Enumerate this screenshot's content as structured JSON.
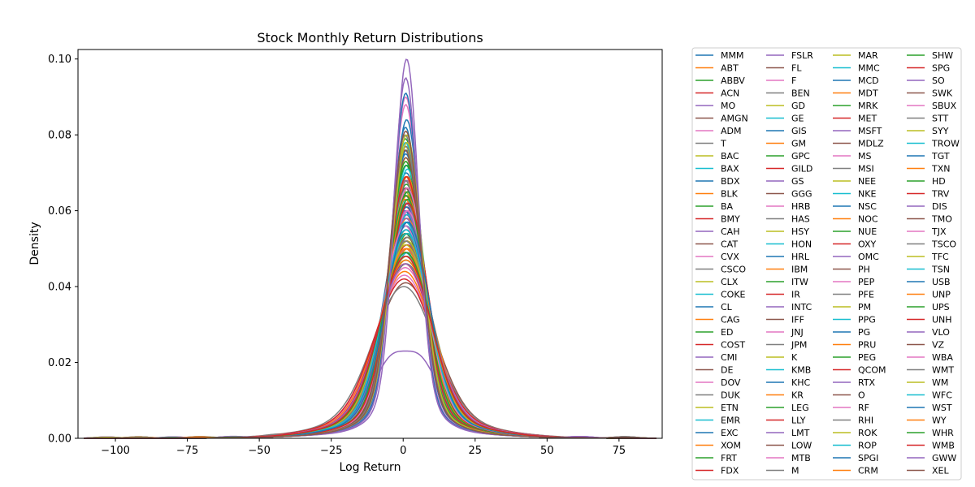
{
  "chart_data": {
    "type": "line",
    "title": "Stock Monthly Return Distributions",
    "xlabel": "Log Return",
    "ylabel": "Density",
    "xlim": [
      -113,
      90
    ],
    "ylim": [
      0,
      0.1025
    ],
    "xticks": [
      -100,
      -75,
      -50,
      -25,
      0,
      25,
      50,
      75
    ],
    "xtick_labels": [
      "−100",
      "−75",
      "−50",
      "−25",
      "0",
      "25",
      "50",
      "75"
    ],
    "yticks": [
      0,
      0.02,
      0.04,
      0.06,
      0.08,
      0.1
    ],
    "ytick_labels": [
      "0.00",
      "0.02",
      "0.04",
      "0.06",
      "0.08",
      "0.10"
    ],
    "grid": false,
    "legend_placement": "outside-right",
    "legend_columns": 4,
    "curve_shape": "kernel density estimate per ticker, centered near 1",
    "palette": [
      "#1f77b4",
      "#ff7f0e",
      "#2ca02c",
      "#d62728",
      "#9467bd",
      "#8c564b",
      "#e377c2",
      "#7f7f7f",
      "#bcbd22",
      "#17becf"
    ],
    "series": [
      {
        "name": "MMM",
        "peak_x": 1.0,
        "peak_density": 0.062
      },
      {
        "name": "ABT",
        "peak_x": 1.2,
        "peak_density": 0.066
      },
      {
        "name": "ABBV",
        "peak_x": 1.5,
        "peak_density": 0.052
      },
      {
        "name": "ACN",
        "peak_x": 1.3,
        "peak_density": 0.06
      },
      {
        "name": "MO",
        "peak_x": 1.0,
        "peak_density": 0.064
      },
      {
        "name": "AMGN",
        "peak_x": 1.1,
        "peak_density": 0.058
      },
      {
        "name": "ADM",
        "peak_x": 0.9,
        "peak_density": 0.056
      },
      {
        "name": "T",
        "peak_x": 0.8,
        "peak_density": 0.063
      },
      {
        "name": "BAC",
        "peak_x": 0.9,
        "peak_density": 0.046
      },
      {
        "name": "BAX",
        "peak_x": 1.0,
        "peak_density": 0.061
      },
      {
        "name": "BDX",
        "peak_x": 1.1,
        "peak_density": 0.068
      },
      {
        "name": "BLK",
        "peak_x": 1.4,
        "peak_density": 0.05
      },
      {
        "name": "BA",
        "peak_x": 1.0,
        "peak_density": 0.045
      },
      {
        "name": "BMY",
        "peak_x": 1.0,
        "peak_density": 0.059
      },
      {
        "name": "CAH",
        "peak_x": 0.9,
        "peak_density": 0.057
      },
      {
        "name": "CAT",
        "peak_x": 1.3,
        "peak_density": 0.049
      },
      {
        "name": "CVX",
        "peak_x": 0.8,
        "peak_density": 0.054
      },
      {
        "name": "CSCO",
        "peak_x": 1.1,
        "peak_density": 0.055
      },
      {
        "name": "CLX",
        "peak_x": 0.9,
        "peak_density": 0.071
      },
      {
        "name": "COKE",
        "peak_x": 1.6,
        "peak_density": 0.047
      },
      {
        "name": "CL",
        "peak_x": 0.9,
        "peak_density": 0.073
      },
      {
        "name": "CAG",
        "peak_x": 0.8,
        "peak_density": 0.062
      },
      {
        "name": "ED",
        "peak_x": 0.8,
        "peak_density": 0.077
      },
      {
        "name": "COST",
        "peak_x": 1.5,
        "peak_density": 0.063
      },
      {
        "name": "CMI",
        "peak_x": 1.2,
        "peak_density": 0.048
      },
      {
        "name": "DE",
        "peak_x": 1.4,
        "peak_density": 0.05
      },
      {
        "name": "DOV",
        "peak_x": 1.1,
        "peak_density": 0.053
      },
      {
        "name": "DUK",
        "peak_x": 0.7,
        "peak_density": 0.078
      },
      {
        "name": "ETN",
        "peak_x": 1.2,
        "peak_density": 0.051
      },
      {
        "name": "EMR",
        "peak_x": 1.0,
        "peak_density": 0.056
      },
      {
        "name": "EXC",
        "peak_x": 0.8,
        "peak_density": 0.062
      },
      {
        "name": "XOM",
        "peak_x": 0.7,
        "peak_density": 0.058
      },
      {
        "name": "FRT",
        "peak_x": 0.8,
        "peak_density": 0.054
      },
      {
        "name": "FDX",
        "peak_x": 1.0,
        "peak_density": 0.049
      },
      {
        "name": "FSLR",
        "peak_x": 0.8,
        "peak_density": 0.023
      },
      {
        "name": "FL",
        "peak_x": 0.9,
        "peak_density": 0.039
      },
      {
        "name": "F",
        "peak_x": 0.4,
        "peak_density": 0.041
      },
      {
        "name": "BEN",
        "peak_x": 0.9,
        "peak_density": 0.045
      },
      {
        "name": "GD",
        "peak_x": 1.2,
        "peak_density": 0.064
      },
      {
        "name": "GE",
        "peak_x": 0.6,
        "peak_density": 0.047
      },
      {
        "name": "GIS",
        "peak_x": 0.8,
        "peak_density": 0.08
      },
      {
        "name": "GM",
        "peak_x": 0.5,
        "peak_density": 0.042
      },
      {
        "name": "GPC",
        "peak_x": 1.1,
        "peak_density": 0.065
      },
      {
        "name": "GILD",
        "peak_x": 1.3,
        "peak_density": 0.049
      },
      {
        "name": "GS",
        "peak_x": 1.0,
        "peak_density": 0.048
      },
      {
        "name": "GGG",
        "peak_x": 1.5,
        "peak_density": 0.057
      },
      {
        "name": "HRB",
        "peak_x": 0.9,
        "peak_density": 0.05
      },
      {
        "name": "HAS",
        "peak_x": 1.0,
        "peak_density": 0.052
      },
      {
        "name": "HSY",
        "peak_x": 1.0,
        "peak_density": 0.072
      },
      {
        "name": "HON",
        "peak_x": 1.2,
        "peak_density": 0.064
      },
      {
        "name": "HRL",
        "peak_x": 1.1,
        "peak_density": 0.074
      },
      {
        "name": "IBM",
        "peak_x": 0.7,
        "peak_density": 0.061
      },
      {
        "name": "ITW",
        "peak_x": 1.2,
        "peak_density": 0.06
      },
      {
        "name": "IR",
        "peak_x": 1.3,
        "peak_density": 0.05
      },
      {
        "name": "INTC",
        "peak_x": 0.9,
        "peak_density": 0.047
      },
      {
        "name": "IFF",
        "peak_x": 0.9,
        "peak_density": 0.06
      },
      {
        "name": "JNJ",
        "peak_x": 0.9,
        "peak_density": 0.086
      },
      {
        "name": "JPM",
        "peak_x": 1.1,
        "peak_density": 0.053
      },
      {
        "name": "K",
        "peak_x": 0.8,
        "peak_density": 0.075
      },
      {
        "name": "KMB",
        "peak_x": 0.8,
        "peak_density": 0.076
      },
      {
        "name": "KHC",
        "peak_x": 0.5,
        "peak_density": 0.058
      },
      {
        "name": "KR",
        "peak_x": 0.9,
        "peak_density": 0.062
      },
      {
        "name": "LEG",
        "peak_x": 0.7,
        "peak_density": 0.052
      },
      {
        "name": "LLY",
        "peak_x": 1.6,
        "peak_density": 0.058
      },
      {
        "name": "LMT",
        "peak_x": 1.3,
        "peak_density": 0.066
      },
      {
        "name": "LOW",
        "peak_x": 1.4,
        "peak_density": 0.055
      },
      {
        "name": "MTB",
        "peak_x": 0.9,
        "peak_density": 0.055
      },
      {
        "name": "M",
        "peak_x": 0.2,
        "peak_density": 0.038
      },
      {
        "name": "MAR",
        "peak_x": 1.2,
        "peak_density": 0.046
      },
      {
        "name": "MMC",
        "peak_x": 1.3,
        "peak_density": 0.07
      },
      {
        "name": "MCD",
        "peak_x": 1.2,
        "peak_density": 0.082
      },
      {
        "name": "MDT",
        "peak_x": 0.9,
        "peak_density": 0.067
      },
      {
        "name": "MRK",
        "peak_x": 1.0,
        "peak_density": 0.07
      },
      {
        "name": "MET",
        "peak_x": 0.9,
        "peak_density": 0.047
      },
      {
        "name": "MSFT",
        "peak_x": 1.7,
        "peak_density": 0.058
      },
      {
        "name": "MDLZ",
        "peak_x": 0.9,
        "peak_density": 0.072
      },
      {
        "name": "MS",
        "peak_x": 1.1,
        "peak_density": 0.044
      },
      {
        "name": "MSI",
        "peak_x": 1.3,
        "peak_density": 0.059
      },
      {
        "name": "NEE",
        "peak_x": 1.2,
        "peak_density": 0.078
      },
      {
        "name": "NKE",
        "peak_x": 1.4,
        "peak_density": 0.057
      },
      {
        "name": "NSC",
        "peak_x": 1.2,
        "peak_density": 0.059
      },
      {
        "name": "NOC",
        "peak_x": 1.4,
        "peak_density": 0.067
      },
      {
        "name": "NUE",
        "peak_x": 1.0,
        "peak_density": 0.044
      },
      {
        "name": "OXY",
        "peak_x": 0.3,
        "peak_density": 0.04
      },
      {
        "name": "OMC",
        "peak_x": 1.0,
        "peak_density": 0.06
      },
      {
        "name": "PH",
        "peak_x": 1.4,
        "peak_density": 0.051
      },
      {
        "name": "PEP",
        "peak_x": 0.9,
        "peak_density": 0.088
      },
      {
        "name": "PFE",
        "peak_x": 0.7,
        "peak_density": 0.066
      },
      {
        "name": "PM",
        "peak_x": 0.8,
        "peak_density": 0.063
      },
      {
        "name": "PPG",
        "peak_x": 1.1,
        "peak_density": 0.058
      },
      {
        "name": "PG",
        "peak_x": 0.9,
        "peak_density": 0.089
      },
      {
        "name": "PRU",
        "peak_x": 0.9,
        "peak_density": 0.045
      },
      {
        "name": "PEG",
        "peak_x": 0.9,
        "peak_density": 0.071
      },
      {
        "name": "QCOM",
        "peak_x": 1.2,
        "peak_density": 0.049
      },
      {
        "name": "RTX",
        "peak_x": 1.0,
        "peak_density": 0.058
      },
      {
        "name": "O",
        "peak_x": 0.8,
        "peak_density": 0.064
      },
      {
        "name": "RF",
        "peak_x": 0.7,
        "peak_density": 0.043
      },
      {
        "name": "RHI",
        "peak_x": 1.0,
        "peak_density": 0.046
      },
      {
        "name": "ROK",
        "peak_x": 1.4,
        "peak_density": 0.05
      },
      {
        "name": "ROP",
        "peak_x": 1.5,
        "peak_density": 0.069
      },
      {
        "name": "SPGI",
        "peak_x": 1.6,
        "peak_density": 0.063
      },
      {
        "name": "CRM",
        "peak_x": 1.6,
        "peak_density": 0.048
      },
      {
        "name": "SHW",
        "peak_x": 1.6,
        "peak_density": 0.061
      },
      {
        "name": "SPG",
        "peak_x": 0.6,
        "peak_density": 0.044
      },
      {
        "name": "SO",
        "peak_x": 0.9,
        "peak_density": 0.093
      },
      {
        "name": "SWK",
        "peak_x": 1.0,
        "peak_density": 0.052
      },
      {
        "name": "SBUX",
        "peak_x": 1.5,
        "peak_density": 0.058
      },
      {
        "name": "STT",
        "peak_x": 0.9,
        "peak_density": 0.05
      },
      {
        "name": "SYY",
        "peak_x": 1.0,
        "peak_density": 0.062
      },
      {
        "name": "TROW",
        "peak_x": 1.2,
        "peak_density": 0.052
      },
      {
        "name": "TGT",
        "peak_x": 1.2,
        "peak_density": 0.055
      },
      {
        "name": "TXN",
        "peak_x": 1.3,
        "peak_density": 0.056
      },
      {
        "name": "HD",
        "peak_x": 1.5,
        "peak_density": 0.063
      },
      {
        "name": "TRV",
        "peak_x": 1.1,
        "peak_density": 0.067
      },
      {
        "name": "DIS",
        "peak_x": 1.0,
        "peak_density": 0.056
      },
      {
        "name": "TMO",
        "peak_x": 1.5,
        "peak_density": 0.064
      },
      {
        "name": "TJX",
        "peak_x": 1.4,
        "peak_density": 0.064
      },
      {
        "name": "TSCO",
        "peak_x": 1.6,
        "peak_density": 0.051
      },
      {
        "name": "TFC",
        "peak_x": 0.9,
        "peak_density": 0.049
      },
      {
        "name": "TSN",
        "peak_x": 0.9,
        "peak_density": 0.055
      },
      {
        "name": "USB",
        "peak_x": 1.0,
        "peak_density": 0.054
      },
      {
        "name": "UNP",
        "peak_x": 1.3,
        "peak_density": 0.062
      },
      {
        "name": "UPS",
        "peak_x": 1.0,
        "peak_density": 0.062
      },
      {
        "name": "UNH",
        "peak_x": 1.7,
        "peak_density": 0.06
      },
      {
        "name": "VLO",
        "peak_x": 0.8,
        "peak_density": 0.044
      },
      {
        "name": "VZ",
        "peak_x": 0.7,
        "peak_density": 0.074
      },
      {
        "name": "WBA",
        "peak_x": 0.7,
        "peak_density": 0.054
      },
      {
        "name": "WMT",
        "peak_x": 1.0,
        "peak_density": 0.075
      },
      {
        "name": "WM",
        "peak_x": 1.3,
        "peak_density": 0.076
      },
      {
        "name": "WFC",
        "peak_x": 0.9,
        "peak_density": 0.053
      },
      {
        "name": "WST",
        "peak_x": 1.6,
        "peak_density": 0.055
      },
      {
        "name": "WY",
        "peak_x": 0.8,
        "peak_density": 0.048
      },
      {
        "name": "WHR",
        "peak_x": 0.9,
        "peak_density": 0.047
      },
      {
        "name": "WMB",
        "peak_x": 0.8,
        "peak_density": 0.046
      },
      {
        "name": "GWW",
        "peak_x": 1.2,
        "peak_density": 0.098
      },
      {
        "name": "XEL",
        "peak_x": 0.9,
        "peak_density": 0.079
      }
    ]
  }
}
